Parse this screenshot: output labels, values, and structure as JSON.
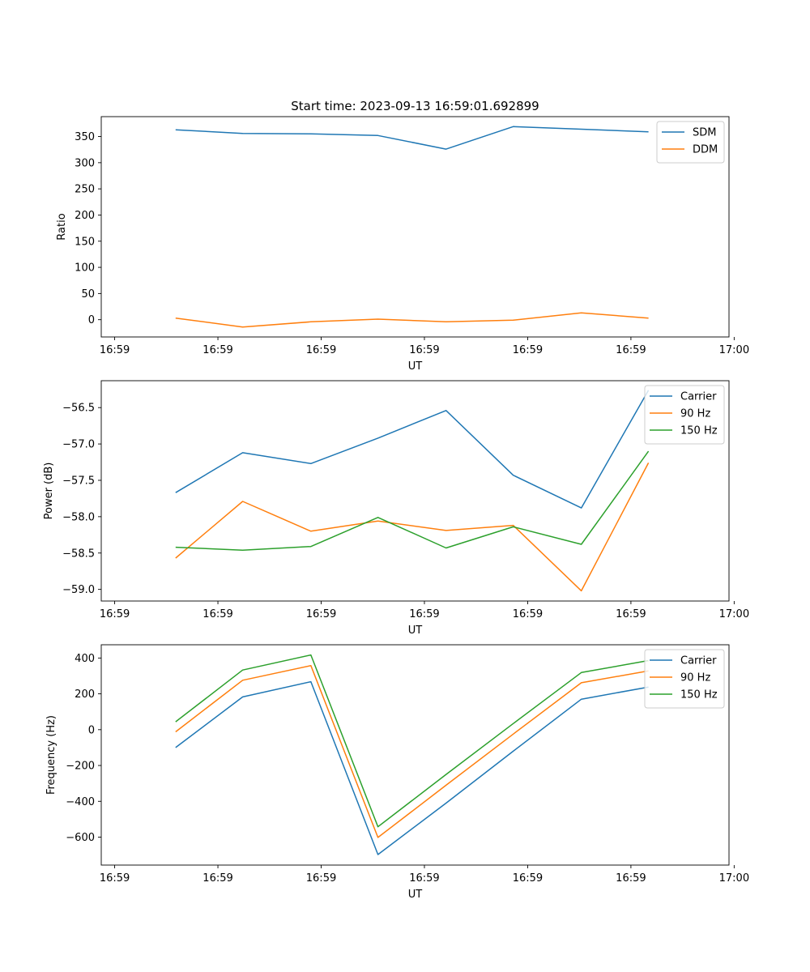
{
  "figure": {
    "title": "Start time: 2023-09-13 16:59:01.692899"
  },
  "chart_data": [
    {
      "type": "line",
      "key": "ratio",
      "ylabel": "Ratio",
      "xlabel": "UT",
      "x": [
        0.59,
        1.24,
        1.9,
        2.55,
        3.21,
        3.86,
        4.52,
        5.17
      ],
      "xlim": [
        -0.13,
        5.95
      ],
      "xticks": [
        0,
        1,
        2,
        3,
        4,
        5,
        6
      ],
      "xtick_labels": [
        "16:59",
        "16:59",
        "16:59",
        "16:59",
        "16:59",
        "16:59",
        "17:00"
      ],
      "ylim": [
        -33,
        388
      ],
      "yticks": [
        0,
        50,
        100,
        150,
        200,
        250,
        300,
        350
      ],
      "ytick_labels": [
        "0",
        "50",
        "100",
        "150",
        "200",
        "250",
        "300",
        "350"
      ],
      "series": [
        {
          "name": "SDM",
          "color": "#1f77b4",
          "values": [
            363,
            356,
            355,
            352,
            326,
            369,
            364,
            359
          ]
        },
        {
          "name": "DDM",
          "color": "#ff7f0e",
          "values": [
            3,
            -14,
            -4,
            1,
            -4,
            -1,
            13,
            3
          ]
        }
      ]
    },
    {
      "type": "line",
      "key": "power",
      "ylabel": "Power (dB)",
      "xlabel": "UT",
      "x": [
        0.59,
        1.24,
        1.9,
        2.55,
        3.21,
        3.86,
        4.52,
        5.17
      ],
      "xlim": [
        -0.13,
        5.95
      ],
      "xticks": [
        0,
        1,
        2,
        3,
        4,
        5,
        6
      ],
      "xtick_labels": [
        "16:59",
        "16:59",
        "16:59",
        "16:59",
        "16:59",
        "16:59",
        "17:00"
      ],
      "ylim": [
        -59.16,
        -56.13
      ],
      "yticks": [
        -59.0,
        -58.5,
        -58.0,
        -57.5,
        -57.0,
        -56.5
      ],
      "ytick_labels": [
        "−59.0",
        "−58.5",
        "−58.0",
        "−57.5",
        "−57.0",
        "−56.5"
      ],
      "series": [
        {
          "name": "Carrier",
          "color": "#1f77b4",
          "values": [
            -57.67,
            -57.12,
            -57.27,
            -56.92,
            -56.54,
            -57.43,
            -57.88,
            -56.26
          ]
        },
        {
          "name": "90 Hz",
          "color": "#ff7f0e",
          "values": [
            -58.57,
            -57.79,
            -58.2,
            -58.06,
            -58.19,
            -58.12,
            -59.02,
            -57.26
          ]
        },
        {
          "name": "150 Hz",
          "color": "#2ca02c",
          "values": [
            -58.42,
            -58.46,
            -58.41,
            -58.01,
            -58.43,
            -58.14,
            -58.38,
            -57.1
          ]
        }
      ]
    },
    {
      "type": "line",
      "key": "frequency",
      "ylabel": "Frequency (Hz)",
      "xlabel": "UT",
      "x": [
        0.59,
        1.24,
        1.9,
        2.55,
        3.21,
        3.86,
        4.52,
        5.17
      ],
      "xlim": [
        -0.13,
        5.95
      ],
      "xticks": [
        0,
        1,
        2,
        3,
        4,
        5,
        6
      ],
      "xtick_labels": [
        "16:59",
        "16:59",
        "16:59",
        "16:59",
        "16:59",
        "16:59",
        "17:00"
      ],
      "ylim": [
        -756,
        474
      ],
      "yticks": [
        -600,
        -400,
        -200,
        0,
        200,
        400
      ],
      "ytick_labels": [
        "−600",
        "−400",
        "−200",
        "0",
        "200",
        "400"
      ],
      "series": [
        {
          "name": "Carrier",
          "color": "#1f77b4",
          "values": [
            -100,
            183,
            268,
            -697,
            -410,
            -120,
            170,
            238
          ]
        },
        {
          "name": "90 Hz",
          "color": "#ff7f0e",
          "values": [
            -12,
            276,
            358,
            -602,
            -310,
            -25,
            262,
            328
          ]
        },
        {
          "name": "150 Hz",
          "color": "#2ca02c",
          "values": [
            44,
            333,
            417,
            -542,
            -250,
            34,
            319,
            386
          ]
        }
      ]
    }
  ]
}
